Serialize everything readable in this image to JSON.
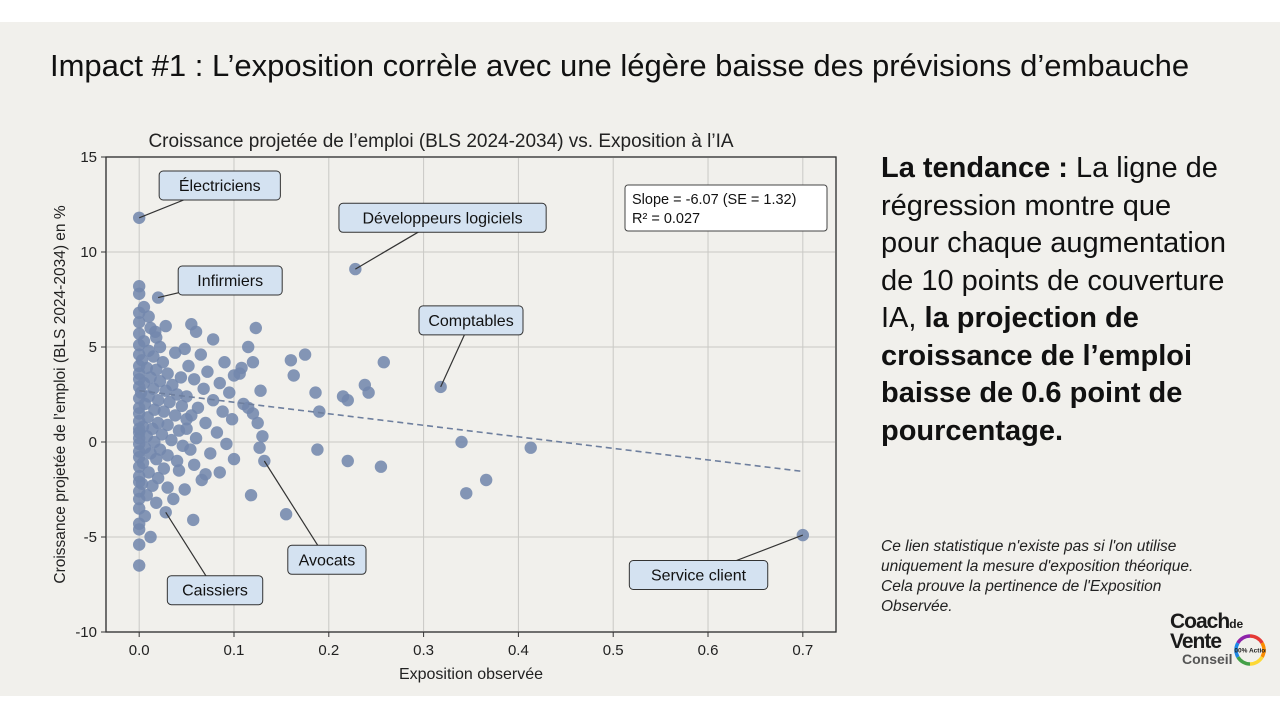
{
  "slide": {
    "title": "Impact #1 : L’exposition corrèle avec une légère baisse des prévisions d’embauche",
    "side_text_bold_lead": "La tendance :",
    "side_text_regular": " La ligne de régression montre que pour chaque augmentation de 10 points de couverture IA, ",
    "side_text_bold": "la projection de croissance de l’emploi baisse de 0.6 point de pourcentage.",
    "note": "Ce lien statistique n'existe pas si l'on utilise uniquement la mesure d'exposition théorique. Cela prouve la pertinence de l'Exposition Observée."
  },
  "logo": {
    "line1": "Coach",
    "line1_small": "de",
    "line2": "Vente",
    "line3": "Conseil",
    "badge_text": "100% Action",
    "colors": [
      "#e53935",
      "#fb8c00",
      "#fdd835",
      "#43a047",
      "#1e88e5",
      "#8e24aa"
    ]
  },
  "chart_data": {
    "type": "scatter",
    "title": "Croissance projetée de l’emploi (BLS 2024-2034) vs. Exposition à l’IA",
    "xlabel": "Exposition observée",
    "ylabel": "Croissance projetée de l’emploi (BLS 2024-2034) en %",
    "xlim": [
      -0.035,
      0.735
    ],
    "ylim": [
      -10,
      15
    ],
    "xticks": [
      "0.0",
      "0.1",
      "0.2",
      "0.3",
      "0.4",
      "0.5",
      "0.6",
      "0.7"
    ],
    "yticks": [
      "-10",
      "-5",
      "0",
      "5",
      "10",
      "15"
    ],
    "grid": true,
    "point_color": "#7388ad",
    "regression": {
      "slope": -6.07,
      "intercept": 2.7,
      "x_range": [
        0.0,
        0.7
      ],
      "color": "#6e7f9e",
      "style": "dashed"
    },
    "stats_box": {
      "line1": "Slope = -6.07 (SE = 1.32)",
      "line2": "R² = 0.027"
    },
    "annotations": [
      {
        "label": "Électriciens",
        "x": 0.0,
        "y": 11.8,
        "label_x": 0.085,
        "label_y": 13.5
      },
      {
        "label": "Développeurs logiciels",
        "x": 0.228,
        "y": 9.1,
        "label_x": 0.32,
        "label_y": 11.8
      },
      {
        "label": "Infirmiers",
        "x": 0.02,
        "y": 7.6,
        "label_x": 0.096,
        "label_y": 8.5
      },
      {
        "label": "Comptables",
        "x": 0.318,
        "y": 2.9,
        "label_x": 0.35,
        "label_y": 6.4
      },
      {
        "label": "Avocats",
        "x": 0.132,
        "y": -1.0,
        "label_x": 0.198,
        "label_y": -6.2
      },
      {
        "label": "Caissiers",
        "x": 0.028,
        "y": -3.7,
        "label_x": 0.08,
        "label_y": -7.8
      },
      {
        "label": "Service client",
        "x": 0.7,
        "y": -4.9,
        "label_x": 0.59,
        "label_y": -7.0
      }
    ],
    "points": [
      [
        0.0,
        11.8
      ],
      [
        0.228,
        9.1
      ],
      [
        0.02,
        7.6
      ],
      [
        0.318,
        2.9
      ],
      [
        0.132,
        -1.0
      ],
      [
        0.028,
        -3.7
      ],
      [
        0.7,
        -4.9
      ],
      [
        0.0,
        8.2
      ],
      [
        0.0,
        7.8
      ],
      [
        0.005,
        7.1
      ],
      [
        0.0,
        6.8
      ],
      [
        0.01,
        6.6
      ],
      [
        0.0,
        6.3
      ],
      [
        0.012,
        6.0
      ],
      [
        0.0,
        5.7
      ],
      [
        0.018,
        5.5
      ],
      [
        0.005,
        5.3
      ],
      [
        0.0,
        5.1
      ],
      [
        0.022,
        5.0
      ],
      [
        0.01,
        4.8
      ],
      [
        0.0,
        4.6
      ],
      [
        0.015,
        4.5
      ],
      [
        0.003,
        4.3
      ],
      [
        0.025,
        4.2
      ],
      [
        0.0,
        4.0
      ],
      [
        0.008,
        3.9
      ],
      [
        0.018,
        3.8
      ],
      [
        0.0,
        3.6
      ],
      [
        0.03,
        3.6
      ],
      [
        0.012,
        3.4
      ],
      [
        0.0,
        3.3
      ],
      [
        0.022,
        3.2
      ],
      [
        0.005,
        3.1
      ],
      [
        0.035,
        3.0
      ],
      [
        0.0,
        2.9
      ],
      [
        0.015,
        2.8
      ],
      [
        0.028,
        2.7
      ],
      [
        0.002,
        2.6
      ],
      [
        0.04,
        2.5
      ],
      [
        0.01,
        2.4
      ],
      [
        0.0,
        2.3
      ],
      [
        0.02,
        2.2
      ],
      [
        0.032,
        2.1
      ],
      [
        0.006,
        2.0
      ],
      [
        0.045,
        1.9
      ],
      [
        0.0,
        1.8
      ],
      [
        0.016,
        1.7
      ],
      [
        0.026,
        1.6
      ],
      [
        0.0,
        1.5
      ],
      [
        0.038,
        1.4
      ],
      [
        0.009,
        1.3
      ],
      [
        0.05,
        1.2
      ],
      [
        0.0,
        1.1
      ],
      [
        0.02,
        1.0
      ],
      [
        0.03,
        0.9
      ],
      [
        0.004,
        0.8
      ],
      [
        0.014,
        0.7
      ],
      [
        0.042,
        0.6
      ],
      [
        0.0,
        0.5
      ],
      [
        0.024,
        0.4
      ],
      [
        0.008,
        0.3
      ],
      [
        0.0,
        0.2
      ],
      [
        0.034,
        0.1
      ],
      [
        0.016,
        0.0
      ],
      [
        0.0,
        -0.1
      ],
      [
        0.046,
        -0.2
      ],
      [
        0.006,
        -0.3
      ],
      [
        0.022,
        -0.4
      ],
      [
        0.0,
        -0.5
      ],
      [
        0.012,
        -0.6
      ],
      [
        0.03,
        -0.7
      ],
      [
        0.0,
        -0.8
      ],
      [
        0.018,
        -0.9
      ],
      [
        0.04,
        -1.0
      ],
      [
        0.004,
        -1.1
      ],
      [
        0.0,
        -1.3
      ],
      [
        0.026,
        -1.4
      ],
      [
        0.01,
        -1.6
      ],
      [
        0.0,
        -1.8
      ],
      [
        0.02,
        -1.9
      ],
      [
        0.0,
        -2.1
      ],
      [
        0.014,
        -2.3
      ],
      [
        0.03,
        -2.4
      ],
      [
        0.0,
        -2.6
      ],
      [
        0.008,
        -2.8
      ],
      [
        0.0,
        -3.0
      ],
      [
        0.018,
        -3.2
      ],
      [
        0.0,
        -3.5
      ],
      [
        0.006,
        -3.9
      ],
      [
        0.0,
        -4.3
      ],
      [
        0.0,
        -4.6
      ],
      [
        0.0,
        -5.4
      ],
      [
        0.0,
        -6.5
      ],
      [
        0.012,
        -5.0
      ],
      [
        0.055,
        6.2
      ],
      [
        0.06,
        5.8
      ],
      [
        0.078,
        5.4
      ],
      [
        0.048,
        4.9
      ],
      [
        0.065,
        4.6
      ],
      [
        0.09,
        4.2
      ],
      [
        0.052,
        4.0
      ],
      [
        0.072,
        3.7
      ],
      [
        0.1,
        3.5
      ],
      [
        0.058,
        3.3
      ],
      [
        0.085,
        3.1
      ],
      [
        0.068,
        2.8
      ],
      [
        0.095,
        2.6
      ],
      [
        0.05,
        2.4
      ],
      [
        0.078,
        2.2
      ],
      [
        0.11,
        2.0
      ],
      [
        0.062,
        1.8
      ],
      [
        0.088,
        1.6
      ],
      [
        0.055,
        1.4
      ],
      [
        0.098,
        1.2
      ],
      [
        0.07,
        1.0
      ],
      [
        0.05,
        0.7
      ],
      [
        0.082,
        0.5
      ],
      [
        0.06,
        0.2
      ],
      [
        0.092,
        -0.1
      ],
      [
        0.054,
        -0.4
      ],
      [
        0.075,
        -0.6
      ],
      [
        0.1,
        -0.9
      ],
      [
        0.058,
        -1.2
      ],
      [
        0.085,
        -1.6
      ],
      [
        0.066,
        -2.0
      ],
      [
        0.048,
        -2.5
      ],
      [
        0.118,
        -2.8
      ],
      [
        0.07,
        -1.7
      ],
      [
        0.057,
        -4.1
      ],
      [
        0.108,
        3.9
      ],
      [
        0.115,
        5.0
      ],
      [
        0.123,
        6.0
      ],
      [
        0.12,
        4.2
      ],
      [
        0.12,
        1.5
      ],
      [
        0.125,
        1.0
      ],
      [
        0.13,
        0.3
      ],
      [
        0.127,
        -0.3
      ],
      [
        0.106,
        3.6
      ],
      [
        0.128,
        2.7
      ],
      [
        0.115,
        1.8
      ],
      [
        0.16,
        4.3
      ],
      [
        0.175,
        4.6
      ],
      [
        0.186,
        2.6
      ],
      [
        0.19,
        1.6
      ],
      [
        0.188,
        -0.4
      ],
      [
        0.163,
        3.5
      ],
      [
        0.155,
        -3.8
      ],
      [
        0.215,
        2.4
      ],
      [
        0.22,
        2.2
      ],
      [
        0.238,
        3.0
      ],
      [
        0.242,
        2.6
      ],
      [
        0.258,
        4.2
      ],
      [
        0.22,
        -1.0
      ],
      [
        0.255,
        -1.3
      ],
      [
        0.34,
        0.0
      ],
      [
        0.345,
        -2.7
      ],
      [
        0.366,
        -2.0
      ],
      [
        0.413,
        -0.3
      ],
      [
        0.0,
        0.7
      ],
      [
        0.003,
        -2.2
      ],
      [
        0.036,
        -3.0
      ],
      [
        0.042,
        -1.5
      ],
      [
        0.044,
        3.4
      ],
      [
        0.038,
        4.7
      ],
      [
        0.017,
        5.8
      ],
      [
        0.028,
        6.1
      ]
    ]
  }
}
